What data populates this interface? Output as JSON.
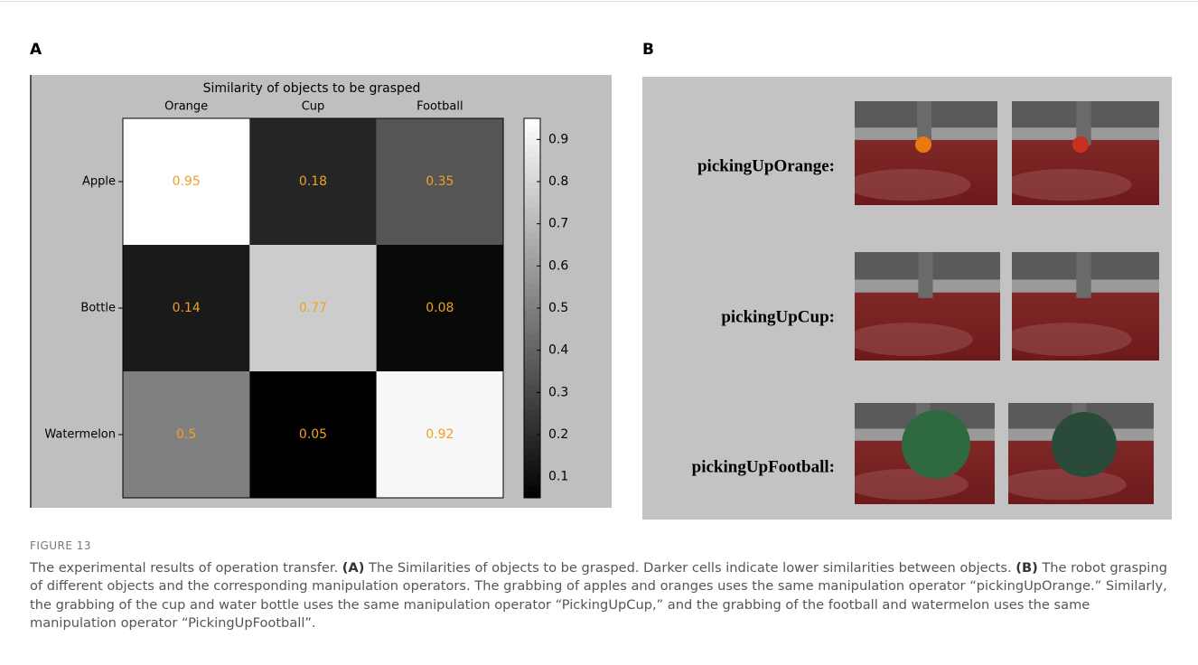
{
  "panels": {
    "a": "A",
    "b": "B"
  },
  "chart_data": {
    "type": "heatmap",
    "title": "Similarity of objects to be grasped",
    "x_categories": [
      "Orange",
      "Cup",
      "Football"
    ],
    "y_categories": [
      "Apple",
      "Bottle",
      "Watermelon"
    ],
    "values": [
      [
        0.95,
        0.18,
        0.35
      ],
      [
        0.14,
        0.77,
        0.08
      ],
      [
        0.5,
        0.05,
        0.92
      ]
    ],
    "colormap": "gray",
    "label_color": "#f0a020",
    "clim": [
      0.05,
      0.95
    ],
    "cticks": [
      0.1,
      0.2,
      0.3,
      0.4,
      0.5,
      0.6,
      0.7,
      0.8,
      0.9
    ]
  },
  "panel_b": {
    "rows": [
      "pickingUpOrange:",
      "pickingUpCup:",
      "pickingUpFootball:"
    ]
  },
  "caption": {
    "label": "FIGURE 13",
    "parts": [
      {
        "text": "The experimental results of operation transfer. ",
        "bold": false
      },
      {
        "text": "(A)",
        "bold": true
      },
      {
        "text": " The Similarities of objects to be grasped. Darker cells indicate lower similarities between objects. ",
        "bold": false
      },
      {
        "text": "(B)",
        "bold": true
      },
      {
        "text": " The robot grasping of different objects and the corresponding manipulation operators. The grabbing of apples and oranges uses the same manipulation operator “pickingUpOrange.” Similarly, the grabbing of the cup and water bottle uses the same manipulation operator “PickingUpCup,” and the grabbing of the football and watermelon uses the same manipulation operator “PickingUpFootball”.",
        "bold": false
      }
    ]
  }
}
